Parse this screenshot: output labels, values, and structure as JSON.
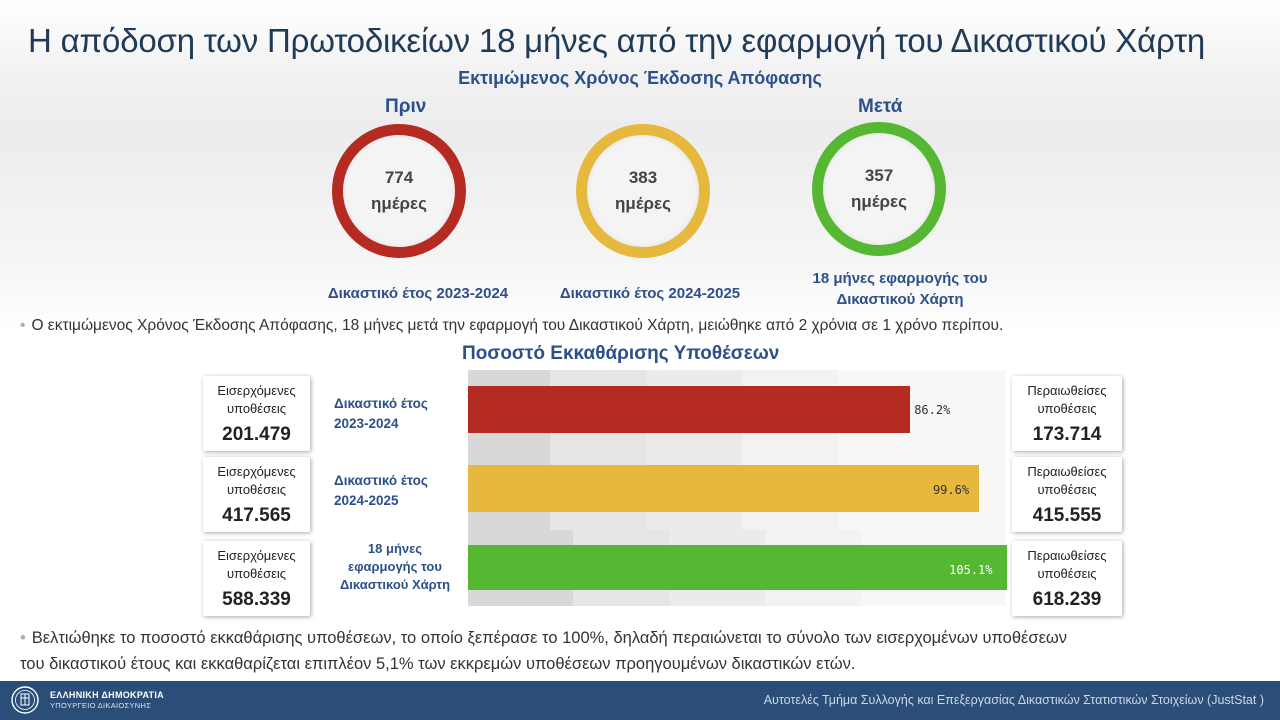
{
  "title": "Η απόδοση των Πρωτοδικείων 18 μήνες από την εφαρμογή του Δικαστικού Χάρτη",
  "subtitle": "Εκτιμώμενος Χρόνος Έκδοσης Απόφασης",
  "labels": {
    "before": "Πριν",
    "after": "Μετά"
  },
  "colors": {
    "red": "#b52b22",
    "yellow": "#e6b83e",
    "green": "#56b733",
    "navy": "#2a4e78",
    "title_blue": "#1f3b57",
    "label_blue": "#2d4f8a"
  },
  "circles": [
    {
      "value": "774",
      "unit": "ημέρες",
      "caption": "Δικαστικό έτος 2023-2024",
      "color": "#b52b22"
    },
    {
      "value": "383",
      "unit": "ημέρες",
      "caption": "Δικαστικό έτος 2024-2025",
      "color": "#e6b83e"
    },
    {
      "value": "357",
      "unit": "ημέρες",
      "caption": "18 μήνες εφαρμογής του Δικαστικού Χάρτη",
      "color": "#56b733"
    }
  ],
  "bullet_1": "Ο εκτιμώμενος Χρόνος Έκδοσης Απόφασης, 18 μήνες μετά την εφαρμογή του  Δικαστικού Χάρτη, μειώθηκε από 2 χρόνια σε 1 χρόνο περίπου.",
  "bar_section_title": "Ποσοστό Εκκαθάρισης Υποθέσεων",
  "rows": [
    {
      "label": "Δικαστικό έτος 2023-2024",
      "incoming_label": "Εισερχόμενες υποθέσεις",
      "incoming_value": "201.479",
      "resolved_label": "Περαιωθείσες υποθέσεις",
      "resolved_value": "173.714",
      "pct_label": "86.2%",
      "pct": 86.2,
      "color": "#b52b22"
    },
    {
      "label": "Δικαστικό έτος 2024-2025",
      "incoming_label": "Εισερχόμενες υποθέσεις",
      "incoming_value": "417.565",
      "resolved_label": "Περαιωθείσες υποθέσεις",
      "resolved_value": "415.555",
      "pct_label": "99.6%",
      "pct": 99.6,
      "color": "#e6b83e"
    },
    {
      "label": "18 μήνες εφαρμογής του Δικαστικού Χάρτη",
      "incoming_label": "Εισερχόμενες υποθέσεις",
      "incoming_value": "588.339",
      "resolved_label": "Περαιωθείσες υποθέσεις",
      "resolved_value": "618.239",
      "pct_label": "105.1%",
      "pct": 105.1,
      "color": "#56b733"
    }
  ],
  "bullet_2_line1": "Βελτιώθηκε το ποσοστό εκκαθάρισης υποθέσεων, το οποίο ξεπέρασε το 100%, δηλαδή περαιώνεται το σύνολο των εισερχομένων υποθέσεων",
  "bullet_2_line2": "του δικαστικού έτους και εκκαθαρίζεται επιπλέον 5,1% των εκκρεμών υποθέσεων προηγουμένων δικαστικών ετών.",
  "footer": {
    "org_line1": "ΕΛΛΗΝΙΚΗ ΔΗΜΟΚΡΑΤΙΑ",
    "org_line2": "ΥΠΟΥΡΓΕΙΟ ΔΙΚΑΙΟΣΥΝΗΣ",
    "source": "Αυτοτελές Τμήμα Συλλογής και Επεξεργασίας Δικαστικών Στατιστικών Στοιχείων (JustStat )",
    "logo_icon": "greek-emblem-icon"
  }
}
